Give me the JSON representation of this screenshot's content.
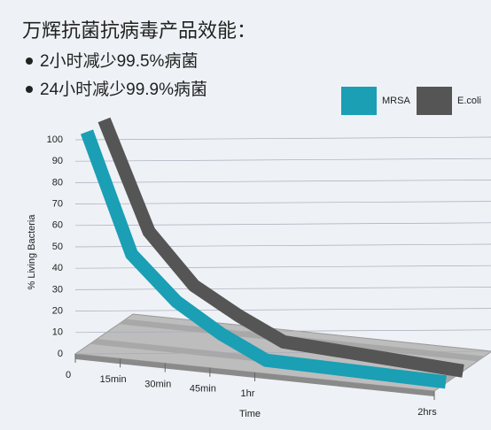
{
  "title": "万辉抗菌抗病毒产品效能：",
  "bullets": [
    "2小时减少99.5%病菌",
    "24小时减少99.9%病菌"
  ],
  "chart_data": {
    "type": "line",
    "y_label": "% Living Bacteria",
    "x_label": "Time",
    "x": [
      0,
      15,
      30,
      45,
      60,
      120
    ],
    "xlim": [
      0,
      120
    ],
    "xticks": [
      0,
      {
        "value": 15,
        "label": "15min"
      },
      {
        "value": 30,
        "label": "30min"
      },
      {
        "value": 45,
        "label": "45min"
      },
      {
        "value": 60,
        "label": "1hr"
      },
      {
        "value": 120,
        "label": "2hrs"
      }
    ],
    "ylim": [
      0,
      100
    ],
    "yticks": [
      0,
      10,
      20,
      30,
      40,
      50,
      60,
      70,
      80,
      90,
      100
    ],
    "grid": true,
    "legend": "top-right",
    "series": [
      {
        "name": "MRSA",
        "color": "#1a9fb5",
        "values": [
          100,
          45,
          25,
          12,
          2,
          0.5
        ]
      },
      {
        "name": "E.coli",
        "color": "#555555",
        "values": [
          100,
          50,
          27,
          15,
          5,
          0.1
        ]
      }
    ]
  }
}
